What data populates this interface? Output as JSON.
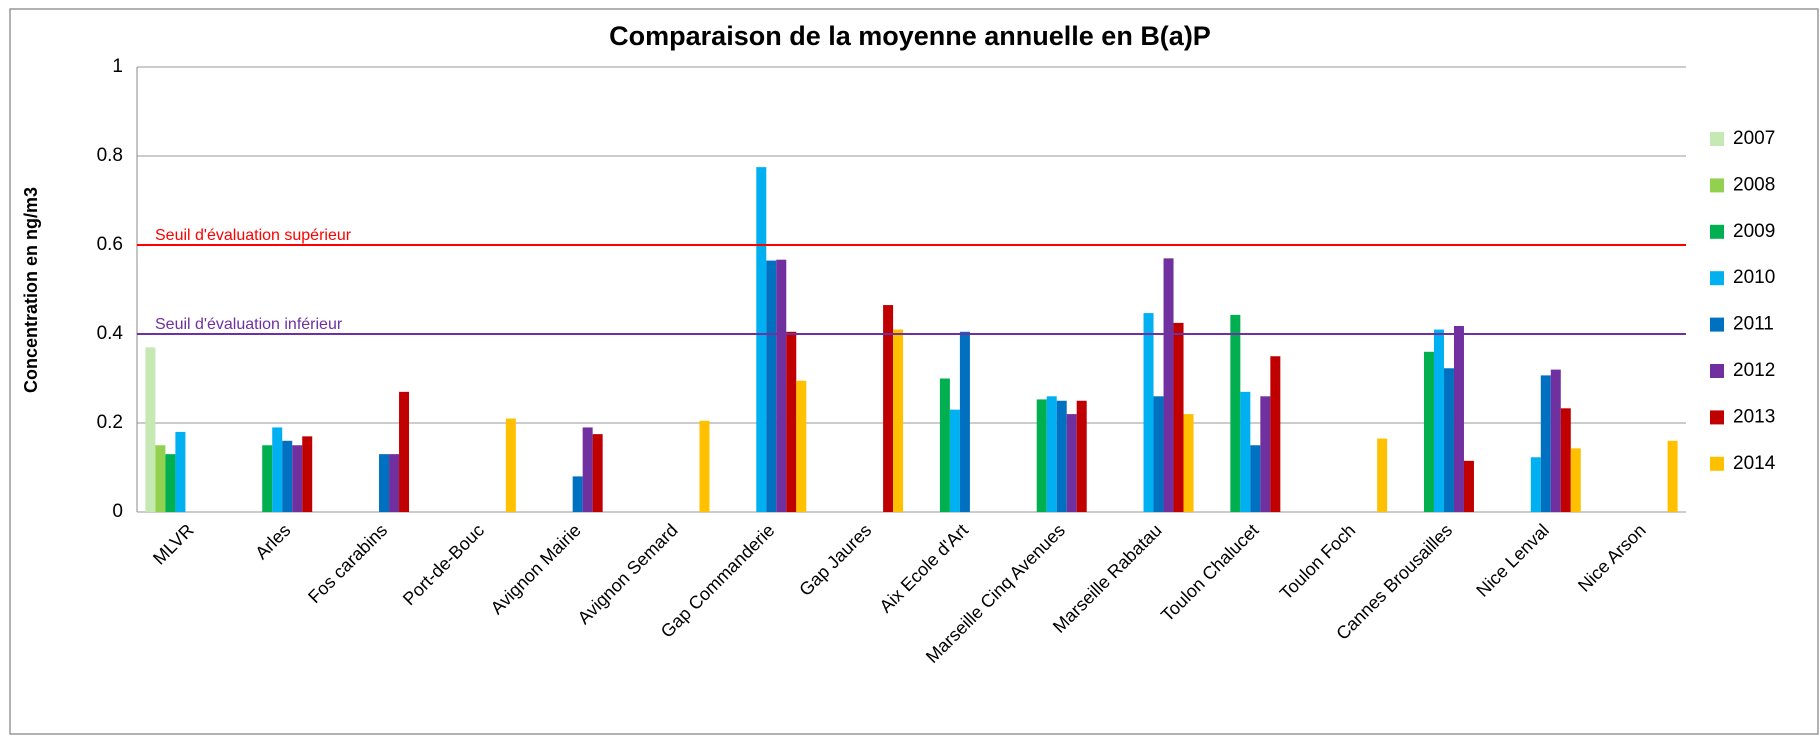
{
  "chart_data": {
    "type": "bar",
    "title": "Comparaison de la moyenne annuelle en B(a)P",
    "y_label": "Concentration en ng/m3",
    "categories": [
      "MLVR",
      "Arles",
      "Fos carabins",
      "Port-de-Bouc",
      "Avignon Mairie",
      "Avignon Semard",
      "Gap Commanderie",
      "Gap Jaures",
      "Aix Ecole d'Art",
      "Marseille Cinq Avenues",
      "Marseille Rabatau",
      "Toulon Chalucet",
      "Toulon Foch",
      "Cannes Brousailles",
      "Nice Lenval",
      "Nice Arson"
    ],
    "series": [
      {
        "name": "2007",
        "color": "#c6e9b4",
        "values": [
          0.37,
          null,
          null,
          null,
          null,
          null,
          null,
          null,
          null,
          null,
          null,
          null,
          null,
          null,
          null,
          null
        ]
      },
      {
        "name": "2008",
        "color": "#92d050",
        "values": [
          0.15,
          null,
          null,
          null,
          null,
          null,
          null,
          null,
          null,
          null,
          null,
          null,
          null,
          null,
          null,
          null
        ]
      },
      {
        "name": "2009",
        "color": "#00b050",
        "values": [
          0.13,
          0.15,
          null,
          null,
          null,
          null,
          null,
          null,
          0.3,
          0.253,
          null,
          0.443,
          null,
          0.36,
          null,
          null
        ]
      },
      {
        "name": "2010",
        "color": "#00b0f0",
        "values": [
          0.18,
          0.19,
          null,
          null,
          null,
          null,
          0.775,
          null,
          0.23,
          0.26,
          0.447,
          0.27,
          null,
          0.41,
          0.123,
          null
        ]
      },
      {
        "name": "2011",
        "color": "#0070c0",
        "values": [
          null,
          0.16,
          0.13,
          null,
          0.08,
          null,
          0.565,
          null,
          0.405,
          0.25,
          0.26,
          0.15,
          null,
          0.323,
          0.307,
          null
        ]
      },
      {
        "name": "2012",
        "color": "#7030a0",
        "values": [
          null,
          0.15,
          0.13,
          null,
          0.19,
          null,
          0.567,
          null,
          null,
          0.22,
          0.57,
          0.26,
          null,
          0.418,
          0.32,
          null
        ]
      },
      {
        "name": "2013",
        "color": "#c00000",
        "values": [
          null,
          0.17,
          0.27,
          null,
          0.175,
          null,
          0.405,
          0.465,
          null,
          0.25,
          0.425,
          0.35,
          null,
          0.115,
          0.233,
          null
        ]
      },
      {
        "name": "2014",
        "color": "#ffc000",
        "values": [
          null,
          null,
          null,
          0.21,
          null,
          0.205,
          0.295,
          0.41,
          null,
          null,
          0.22,
          null,
          0.165,
          null,
          0.143,
          0.16
        ]
      }
    ],
    "thresholds": [
      {
        "label": "Seuil d'évaluation supérieur",
        "value": 0.6,
        "color": "#ff0000"
      },
      {
        "label": "Seuil d'évaluation inférieur",
        "value": 0.4,
        "color": "#7030a0"
      }
    ],
    "ylim": [
      0,
      1
    ],
    "yticks": [
      0,
      0.2,
      0.4,
      0.6,
      0.8,
      1
    ],
    "grid": true,
    "legend": "right"
  }
}
